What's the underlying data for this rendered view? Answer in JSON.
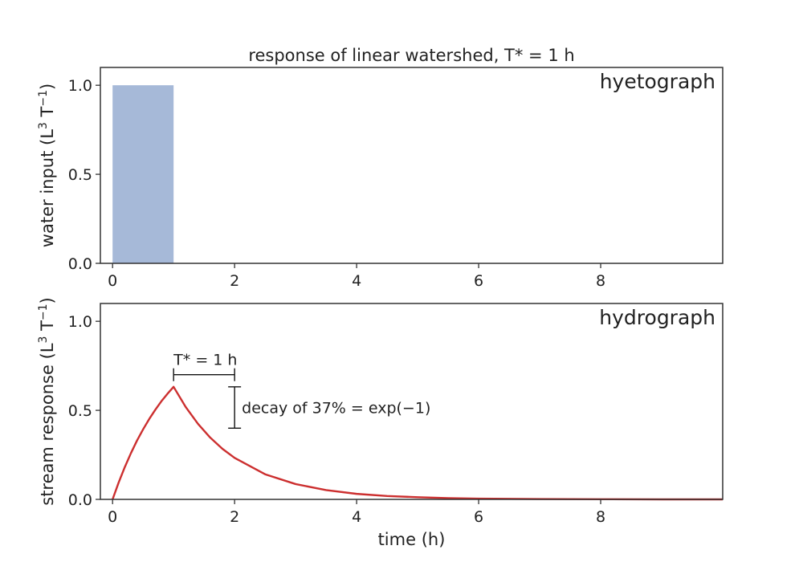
{
  "title": "response of linear watershed, T* = 1 h",
  "colors": {
    "bar": "#a6b9d8",
    "line": "#cc2f2f",
    "axes": "#333333",
    "text": "#222222"
  },
  "chart_data": [
    {
      "type": "bar",
      "panel_label": "hyetograph",
      "ylabel_parts": [
        "water input (L",
        "3",
        " T",
        "−1",
        ")"
      ],
      "xlim": [
        -0.2,
        10
      ],
      "ylim": [
        0,
        1.1
      ],
      "xticks": [
        0,
        2,
        4,
        6,
        8
      ],
      "xtick_labels": [
        "0",
        "2",
        "4",
        "6",
        "8"
      ],
      "yticks": [
        0,
        0.5,
        1.0
      ],
      "ytick_labels": [
        "0.0",
        "0.5",
        "1.0"
      ],
      "bars": [
        {
          "x_start": 0,
          "x_end": 1,
          "value": 1.0
        }
      ]
    },
    {
      "type": "line",
      "panel_label": "hydrograph",
      "ylabel_parts": [
        "stream response (L",
        "3",
        " T",
        "−1",
        ")"
      ],
      "xlabel": "time (h)",
      "xlim": [
        -0.2,
        10
      ],
      "ylim": [
        0,
        1.1
      ],
      "xticks": [
        0,
        2,
        4,
        6,
        8
      ],
      "xtick_labels": [
        "0",
        "2",
        "4",
        "6",
        "8"
      ],
      "yticks": [
        0,
        0.5,
        1.0
      ],
      "ytick_labels": [
        "0.0",
        "0.5",
        "1.0"
      ],
      "series": [
        {
          "x": [
            0,
            0.1,
            0.2,
            0.3,
            0.4,
            0.5,
            0.6,
            0.7,
            0.8,
            0.9,
            1.0,
            1.2,
            1.4,
            1.6,
            1.8,
            2.0,
            2.5,
            3.0,
            3.5,
            4.0,
            4.5,
            5.0,
            5.5,
            6.0,
            7.0,
            8.0,
            9.0,
            10.0
          ],
          "y": [
            0,
            0.095,
            0.181,
            0.259,
            0.33,
            0.393,
            0.451,
            0.503,
            0.551,
            0.593,
            0.632,
            0.518,
            0.424,
            0.347,
            0.284,
            0.233,
            0.141,
            0.086,
            0.052,
            0.031,
            0.019,
            0.012,
            0.007,
            0.004,
            0.002,
            0.001,
            0.0,
            0.0
          ]
        }
      ],
      "annotations": {
        "tstar_label": "T* = 1 h",
        "tstar_span": [
          1,
          2
        ],
        "tstar_y": 0.7,
        "decay_label": "decay of 37% = exp(−1)",
        "decay_x": 2.0,
        "decay_range": [
          0.4,
          0.632
        ]
      }
    }
  ]
}
